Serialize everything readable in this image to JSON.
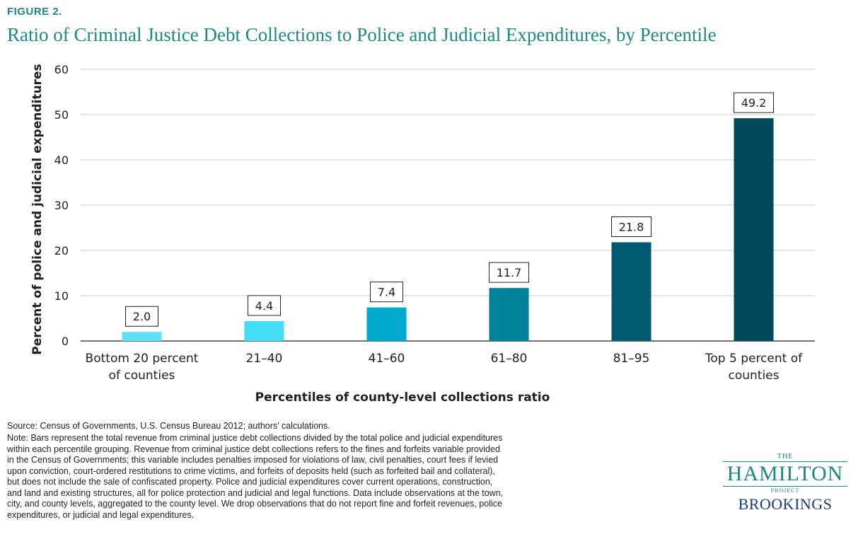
{
  "figure": {
    "label": "FIGURE 2.",
    "title": "Ratio of Criminal Justice Debt Collections to Police and Judicial Expenditures, by Percentile"
  },
  "chart_data": {
    "type": "bar",
    "title": "Ratio of Criminal Justice Debt Collections to Police and Judicial Expenditures, by Percentile",
    "categories": [
      [
        "Bottom 20 percent",
        "of counties"
      ],
      [
        "21–40"
      ],
      [
        "41–60"
      ],
      [
        "61–80"
      ],
      [
        "81–95"
      ],
      [
        "Top 5 percent of",
        "counties"
      ]
    ],
    "values": [
      2.0,
      4.4,
      7.4,
      11.7,
      21.8,
      49.2
    ],
    "value_labels": [
      "2.0",
      "4.4",
      "7.4",
      "11.7",
      "21.8",
      "49.2"
    ],
    "colors": [
      "#5ee0f5",
      "#45ddf5",
      "#00aacc",
      "#00829a",
      "#005a6e",
      "#004a5c"
    ],
    "xlabel": "Percentiles of county-level collections ratio",
    "ylabel": "Percent of police and judicial expenditures",
    "ylim": [
      0,
      60
    ],
    "yticks": [
      0,
      10,
      20,
      30,
      40,
      50,
      60
    ],
    "grid": true
  },
  "notes": {
    "source": "Source: Census of Governments, U.S. Census Bureau 2012; authors’ calculations.",
    "note": "Note: Bars represent the total revenue from criminal justice debt collections divided by the total police and judicial expenditures within each percentile grouping. Revenue from criminal justice debt collections refers to the fines and forfeits variable provided in the Census of Governments; this variable includes penalties imposed for violations of law, civil penalties, court fees if levied upon conviction, court-ordered restitutions to crime victims, and forfeits of deposits held (such as forfeited bail and collateral), but does not include the sale of confiscated property. Police and judicial expenditures cover current operations, construction, and land and existing structures, all for police protection and judicial and legal functions. Data include observations at the town, city, and county levels, aggregated to the county level. We drop observations that do not report fine and forfeit revenues, police expenditures, or judicial and legal expenditures."
  },
  "logo": {
    "the": "THE",
    "hamilton": "HAMILTON",
    "project": "PROJECT",
    "brookings": "BROOKINGS"
  }
}
